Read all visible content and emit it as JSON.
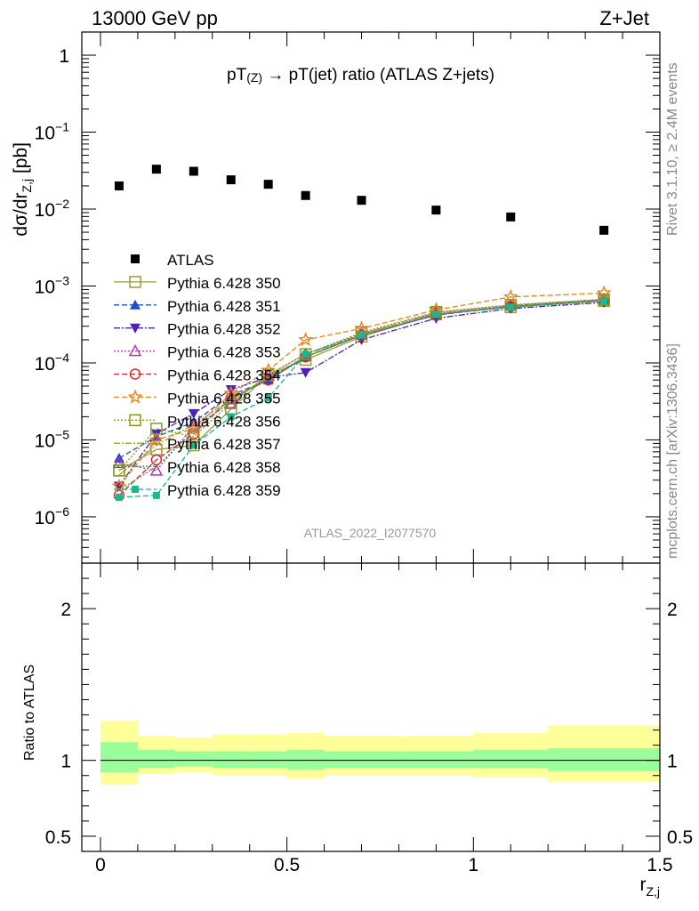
{
  "header": {
    "left": "13000 GeV pp",
    "right": "Z+Jet"
  },
  "side_labels": {
    "top": "Rivet 3.1.10, ≥ 2.4M events",
    "bottom": "mcplots.cern.ch [arXiv:1306.3436]"
  },
  "watermark": "ATLAS_2022_I2077570",
  "chart_data": [
    {
      "type": "scatter",
      "title": "pT(Z) → pT(jet) ratio (ATLAS Z+jets)",
      "title_parts": [
        "pT",
        "(Z)",
        " → pT(jet) ratio (ATLAS Z+jets)"
      ],
      "ylabel": "dσ/dr_{Z,j} [pb]",
      "ylabel_parts": [
        "dσ/dr",
        "Z,j",
        " [pb]"
      ],
      "xlim": [
        -0.05,
        1.5
      ],
      "ylim": [
        2.5e-07,
        2
      ],
      "yscale": "log",
      "yticks": [
        {
          "value": 1,
          "base": "1",
          "exp": ""
        },
        {
          "value": 0.1,
          "base": "10",
          "exp": "−1"
        },
        {
          "value": 0.01,
          "base": "10",
          "exp": "−2"
        },
        {
          "value": 0.001,
          "base": "10",
          "exp": "−3"
        },
        {
          "value": 0.0001,
          "base": "10",
          "exp": "−4"
        },
        {
          "value": 1e-05,
          "base": "10",
          "exp": "−5"
        },
        {
          "value": 1e-06,
          "base": "10",
          "exp": "−6"
        }
      ],
      "legend_position": "middle-left",
      "series": [
        {
          "name": "ATLAS",
          "color": "#000000",
          "marker": "square-filled",
          "dash": "none",
          "x": [
            0.05,
            0.15,
            0.25,
            0.35,
            0.45,
            0.55,
            0.7,
            0.9,
            1.1,
            1.35
          ],
          "y": [
            0.02,
            0.033,
            0.031,
            0.024,
            0.021,
            0.015,
            0.013,
            0.0097,
            0.0079,
            0.0053
          ]
        },
        {
          "name": "Pythia 6.428 350",
          "color": "#9a9a3a",
          "marker": "square-open",
          "dash": "solid",
          "x": [
            0.05,
            0.15,
            0.25,
            0.35,
            0.45,
            0.55,
            0.7,
            0.9,
            1.1,
            1.35
          ],
          "y": [
            4e-06,
            7.5e-06,
            8.5e-06,
            2.5e-05,
            7e-05,
            0.00011,
            0.00022,
            0.00043,
            0.00053,
            0.00064
          ]
        },
        {
          "name": "Pythia 6.428 351",
          "color": "#1f4fc4",
          "marker": "triangle-up-filled",
          "dash": "6,3",
          "x": [
            0.05,
            0.15,
            0.25,
            0.35,
            0.45,
            0.55,
            0.7,
            0.9,
            1.1,
            1.35
          ],
          "y": [
            5.8e-06,
            1.1e-05,
            1.7e-05,
            3.8e-05,
            6e-05,
            0.00012,
            0.00023,
            0.00042,
            0.00055,
            0.00066
          ]
        },
        {
          "name": "Pythia 6.428 352",
          "color": "#4a22b8",
          "marker": "triangle-down-filled",
          "dash": "7,2,2,2",
          "x": [
            0.05,
            0.15,
            0.25,
            0.35,
            0.45,
            0.55,
            0.7,
            0.9,
            1.1,
            1.35
          ],
          "y": [
            2.5e-06,
            1.2e-05,
            2.2e-05,
            4.5e-05,
            6.5e-05,
            7.5e-05,
            0.0002,
            0.00038,
            0.00051,
            0.00061
          ]
        },
        {
          "name": "Pythia 6.428 353",
          "color": "#b030b0",
          "marker": "triangle-up-open",
          "dash": "2,2",
          "x": [
            0.05,
            0.15,
            0.25,
            0.35,
            0.45,
            0.55,
            0.7,
            0.9,
            1.1,
            1.35
          ],
          "y": [
            5e-06,
            4e-06,
            1.5e-05,
            3e-05,
            7e-05,
            0.00013,
            0.00024,
            0.00045,
            0.00056,
            0.00067
          ]
        },
        {
          "name": "Pythia 6.428 354",
          "color": "#e0202a",
          "marker": "circle-open",
          "dash": "6,3",
          "x": [
            0.05,
            0.15,
            0.25,
            0.35,
            0.45,
            0.55,
            0.7,
            0.9,
            1.1,
            1.35
          ],
          "y": [
            1.9e-06,
            5.5e-06,
            1.2e-05,
            3.5e-05,
            6e-05,
            0.00012,
            0.00023,
            0.00042,
            0.00054,
            0.00065
          ]
        },
        {
          "name": "Pythia 6.428 355",
          "color": "#f08020",
          "marker": "star-open",
          "dash": "6,3",
          "x": [
            0.05,
            0.15,
            0.25,
            0.35,
            0.45,
            0.55,
            0.7,
            0.9,
            1.1,
            1.35
          ],
          "y": [
            2.5e-06,
            1e-05,
            1.4e-05,
            4e-05,
            8e-05,
            0.0002,
            0.00028,
            0.00049,
            0.00072,
            0.00081
          ]
        },
        {
          "name": "Pythia 6.428 356",
          "color": "#8a9a20",
          "marker": "square-open",
          "dash": "2,2",
          "x": [
            0.05,
            0.15,
            0.25,
            0.35,
            0.45,
            0.55,
            0.7,
            0.9,
            1.1,
            1.35
          ],
          "y": [
            4e-06,
            1.4e-05,
            1.1e-05,
            3e-05,
            7e-05,
            0.00013,
            0.00025,
            0.00046,
            0.00057,
            0.00067
          ]
        },
        {
          "name": "Pythia 6.428 357",
          "color": "#a8a020",
          "marker": "none",
          "dash": "7,2,2,2",
          "x": [
            0.05,
            0.15,
            0.25,
            0.35,
            0.45,
            0.55,
            0.7,
            0.9,
            1.1,
            1.35
          ],
          "y": [
            3.5e-06,
            8.5e-06,
            1.6e-05,
            3.3e-05,
            6.5e-05,
            0.00012,
            0.00024,
            0.00044,
            0.00055,
            0.00066
          ]
        },
        {
          "name": "Pythia 6.428 358",
          "color": "#2f9a3a",
          "marker": "none",
          "dash": "2,2",
          "x": [
            0.05,
            0.15,
            0.25,
            0.35,
            0.45,
            0.55,
            0.7,
            0.9,
            1.1,
            1.35
          ],
          "y": [
            2.2e-06,
            4.5e-06,
            1.3e-05,
            3.4e-05,
            6.2e-05,
            0.00012,
            0.00023,
            0.00043,
            0.00054,
            0.00064
          ]
        },
        {
          "name": "Pythia 6.428 359",
          "color": "#18b890",
          "marker": "square-filled-small",
          "dash": "6,3",
          "x": [
            0.05,
            0.15,
            0.25,
            0.35,
            0.45,
            0.55,
            0.7,
            0.9,
            1.1,
            1.35
          ],
          "y": [
            1.8e-06,
            1.9e-06,
            8.5e-06,
            2e-05,
            3.5e-05,
            0.00013,
            0.00023,
            0.00043,
            0.00053,
            0.00064
          ]
        }
      ]
    },
    {
      "type": "area",
      "ylabel": "Ratio to ATLAS",
      "xlabel": "r_{Z,j}",
      "xlabel_parts": [
        "r",
        "Z,j"
      ],
      "xlim": [
        -0.05,
        1.5
      ],
      "ylim": [
        0.4,
        2.3
      ],
      "xticks": [
        {
          "value": 0,
          "label": "0"
        },
        {
          "value": 0.5,
          "label": "0.5"
        },
        {
          "value": 1,
          "label": "1"
        },
        {
          "value": 1.5,
          "label": "1.5"
        }
      ],
      "yticks": [
        {
          "value": 0.5,
          "label": "0.5"
        },
        {
          "value": 1,
          "label": "1"
        },
        {
          "value": 2,
          "label": "2"
        }
      ],
      "reference_line": 1,
      "bins": [
        {
          "xlo": 0.0,
          "xhi": 0.1,
          "stat": [
            0.92,
            1.12
          ],
          "total": [
            0.84,
            1.26
          ]
        },
        {
          "xlo": 0.1,
          "xhi": 0.2,
          "stat": [
            0.95,
            1.07
          ],
          "total": [
            0.91,
            1.16
          ]
        },
        {
          "xlo": 0.2,
          "xhi": 0.3,
          "stat": [
            0.96,
            1.06
          ],
          "total": [
            0.92,
            1.15
          ]
        },
        {
          "xlo": 0.3,
          "xhi": 0.4,
          "stat": [
            0.95,
            1.06
          ],
          "total": [
            0.9,
            1.17
          ]
        },
        {
          "xlo": 0.4,
          "xhi": 0.5,
          "stat": [
            0.95,
            1.06
          ],
          "total": [
            0.9,
            1.17
          ]
        },
        {
          "xlo": 0.5,
          "xhi": 0.6,
          "stat": [
            0.94,
            1.07
          ],
          "total": [
            0.88,
            1.18
          ]
        },
        {
          "xlo": 0.6,
          "xhi": 0.8,
          "stat": [
            0.95,
            1.06
          ],
          "total": [
            0.9,
            1.16
          ]
        },
        {
          "xlo": 0.8,
          "xhi": 1.0,
          "stat": [
            0.95,
            1.06
          ],
          "total": [
            0.9,
            1.16
          ]
        },
        {
          "xlo": 1.0,
          "xhi": 1.2,
          "stat": [
            0.95,
            1.07
          ],
          "total": [
            0.89,
            1.18
          ]
        },
        {
          "xlo": 1.2,
          "xhi": 1.5,
          "stat": [
            0.93,
            1.08
          ],
          "total": [
            0.86,
            1.23
          ]
        }
      ]
    }
  ]
}
